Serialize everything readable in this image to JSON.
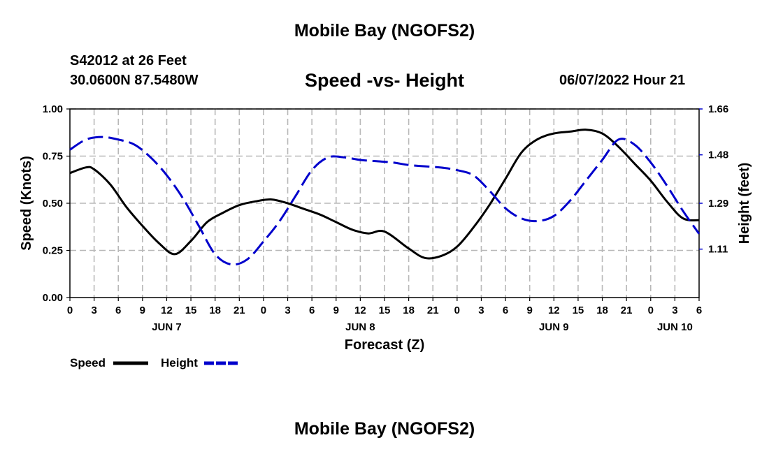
{
  "header": {
    "title": "Mobile Bay (NGOFS2)",
    "station": "S42012 at 26 Feet",
    "coords": "30.0600N  87.5480W",
    "subtitle": "Speed -vs- Height",
    "date": "06/07/2022 Hour 21"
  },
  "footer": {
    "title": "Mobile Bay (NGOFS2)"
  },
  "chart_data": {
    "type": "line",
    "title": "Speed -vs- Height",
    "xlabel": "Forecast (Z)",
    "ylabel": "Speed (Knots)",
    "y2label": "Height (feet)",
    "xlim": [
      0,
      78
    ],
    "ylim": [
      0,
      1.0
    ],
    "y2lim": [
      0.92,
      1.66
    ],
    "grid": true,
    "x_ticks": [
      0,
      3,
      6,
      9,
      12,
      15,
      18,
      21,
      24,
      27,
      30,
      33,
      36,
      39,
      42,
      45,
      48,
      51,
      54,
      57,
      60,
      63,
      66,
      69,
      72,
      75,
      78
    ],
    "x_tick_labels": [
      "0",
      "3",
      "6",
      "9",
      "12",
      "15",
      "18",
      "21",
      "0",
      "3",
      "6",
      "9",
      "12",
      "15",
      "18",
      "21",
      "0",
      "3",
      "6",
      "9",
      "12",
      "15",
      "18",
      "21",
      "0",
      "3",
      "6"
    ],
    "day_labels": [
      {
        "x": 12,
        "label": "JUN 7"
      },
      {
        "x": 36,
        "label": "JUN 8"
      },
      {
        "x": 60,
        "label": "JUN 9"
      },
      {
        "x": 75,
        "label": "JUN 10"
      }
    ],
    "y_ticks": [
      0,
      0.25,
      0.5,
      0.75,
      1.0
    ],
    "y_tick_labels": [
      "0.00",
      "0.25",
      "0.50",
      "0.75",
      "1.00"
    ],
    "y2_ticks": [
      1.11,
      1.29,
      1.48,
      1.66
    ],
    "y2_tick_labels": [
      "1.11",
      "1.29",
      "1.48",
      "1.66"
    ],
    "series": [
      {
        "name": "Speed",
        "axis": "left",
        "color": "#000000",
        "dash": "solid",
        "x": [
          0,
          2,
          3,
          5,
          7,
          9,
          11,
          13,
          15,
          17,
          19,
          21,
          23,
          25,
          27,
          29,
          31,
          33,
          35,
          37,
          39,
          42,
          44,
          46,
          48,
          50,
          52,
          54,
          56,
          58,
          60,
          62,
          64,
          66,
          68,
          70,
          72,
          74,
          76,
          78
        ],
        "values": [
          0.66,
          0.69,
          0.68,
          0.6,
          0.48,
          0.38,
          0.29,
          0.23,
          0.3,
          0.4,
          0.45,
          0.49,
          0.51,
          0.52,
          0.5,
          0.47,
          0.44,
          0.4,
          0.36,
          0.34,
          0.35,
          0.26,
          0.21,
          0.22,
          0.27,
          0.37,
          0.49,
          0.63,
          0.77,
          0.84,
          0.87,
          0.88,
          0.89,
          0.87,
          0.8,
          0.71,
          0.62,
          0.51,
          0.42,
          0.41
        ]
      },
      {
        "name": "Height",
        "axis": "right",
        "color": "#0000cc",
        "dash": "dashed",
        "x": [
          0,
          2,
          4,
          6,
          8,
          10,
          12,
          14,
          16,
          18,
          20,
          22,
          24,
          26,
          28,
          30,
          32,
          34,
          36,
          38,
          40,
          42,
          44,
          46,
          48,
          50,
          52,
          54,
          56,
          58,
          60,
          62,
          64,
          66,
          68,
          70,
          72,
          74,
          76,
          78
        ],
        "values": [
          1.5,
          1.54,
          1.55,
          1.54,
          1.52,
          1.47,
          1.4,
          1.31,
          1.2,
          1.09,
          1.05,
          1.07,
          1.14,
          1.22,
          1.32,
          1.42,
          1.47,
          1.47,
          1.46,
          1.455,
          1.45,
          1.44,
          1.435,
          1.43,
          1.42,
          1.4,
          1.34,
          1.27,
          1.23,
          1.22,
          1.24,
          1.3,
          1.38,
          1.46,
          1.54,
          1.52,
          1.45,
          1.36,
          1.26,
          1.17
        ]
      }
    ],
    "legend": [
      {
        "label": "Speed",
        "color": "#000000",
        "dash": "solid"
      },
      {
        "label": "Height",
        "color": "#0000cc",
        "dash": "dashed"
      }
    ]
  }
}
